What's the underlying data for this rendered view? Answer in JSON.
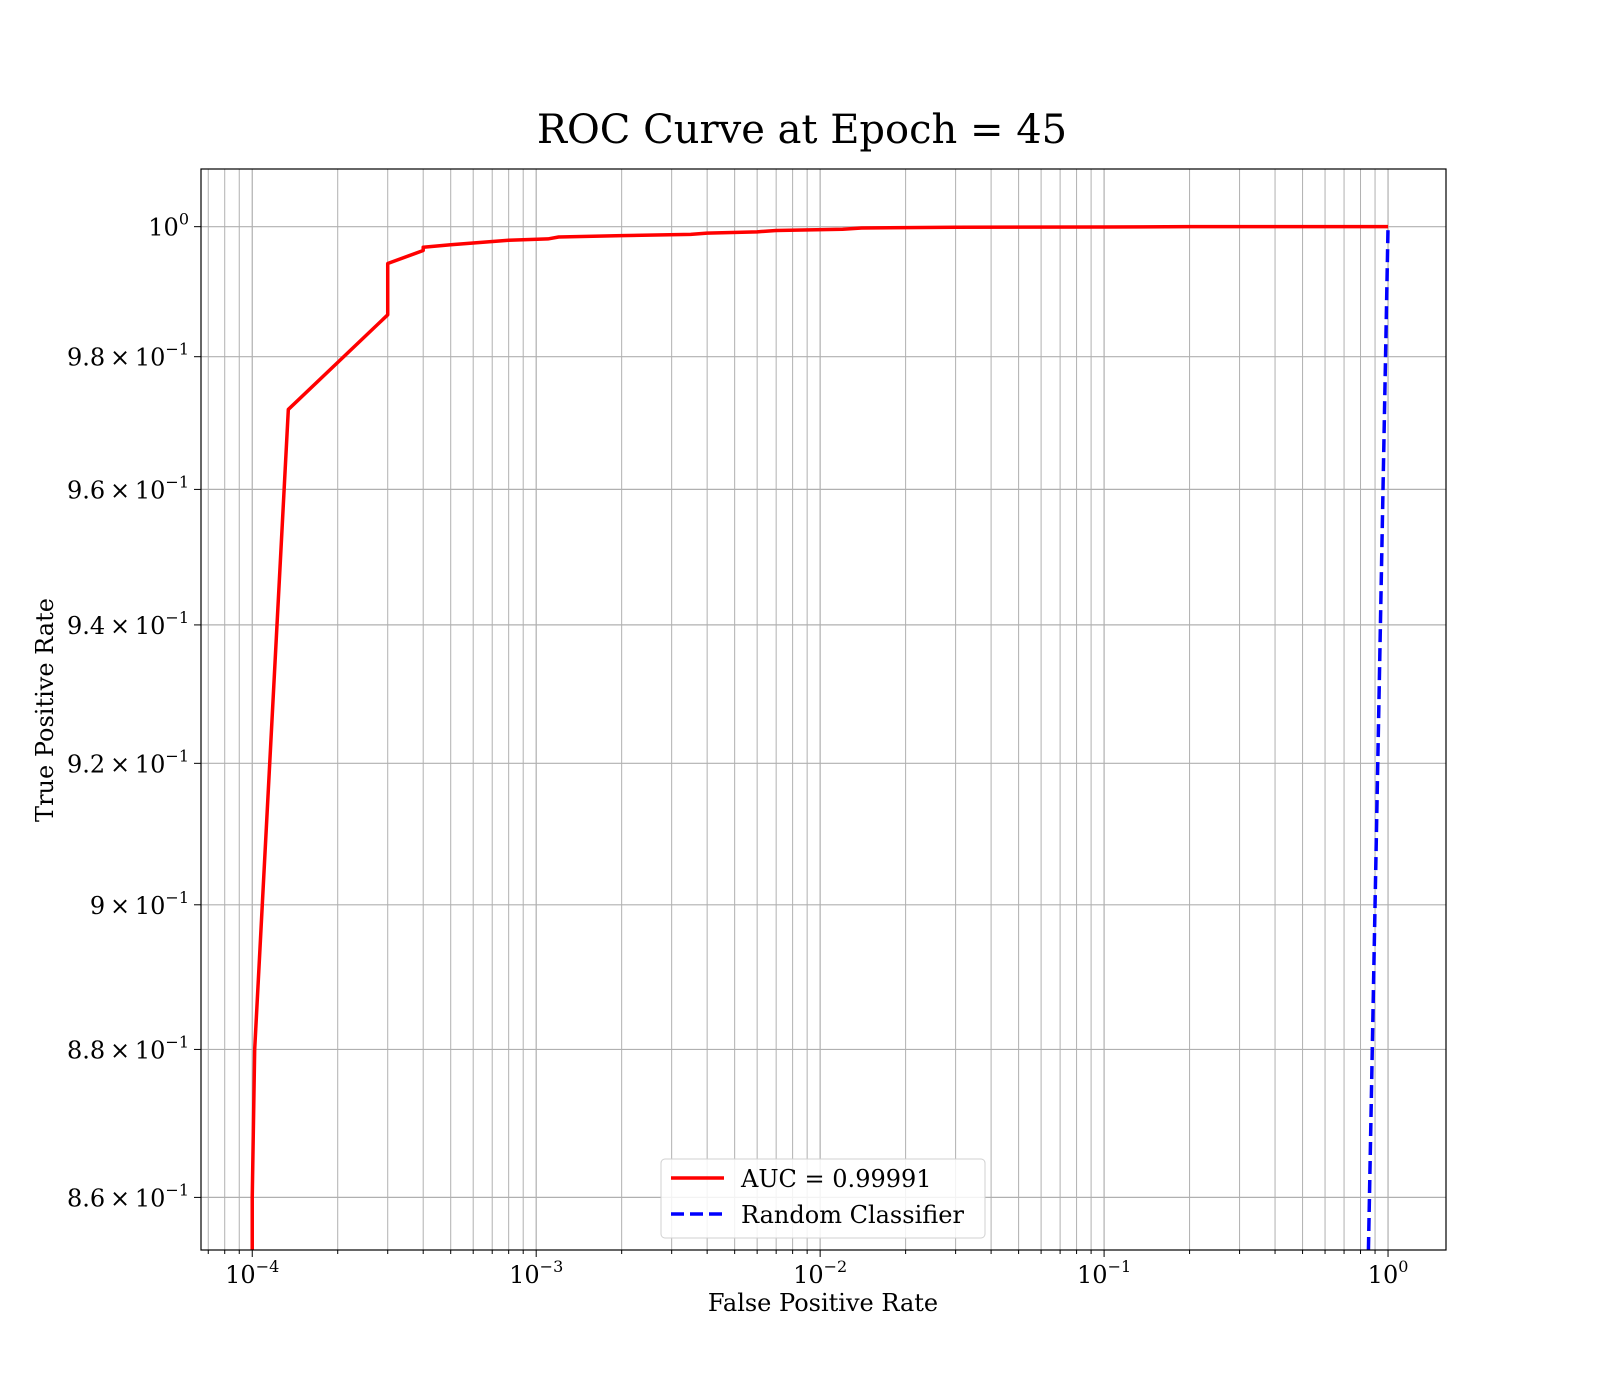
{
  "chart_data": {
    "type": "line",
    "title": "ROC Curve at Epoch = 45",
    "xlabel": "False Positive Rate",
    "ylabel": "True Positive Rate",
    "xscale": "log",
    "yscale": "log",
    "xlim": [
      6.6e-05,
      1.6
    ],
    "ylim": [
      0.853,
      1.009
    ],
    "grid": "on (major and minor)",
    "legend_placement": "lower center",
    "x_ticks": [
      {
        "value": 0.0001,
        "base": "10",
        "exp": "−4"
      },
      {
        "value": 0.001,
        "base": "10",
        "exp": "−3"
      },
      {
        "value": 0.01,
        "base": "10",
        "exp": "−2"
      },
      {
        "value": 0.1,
        "base": "10",
        "exp": "−1"
      },
      {
        "value": 1,
        "base": "10",
        "exp": "0"
      }
    ],
    "y_ticks": [
      {
        "value": 1.0,
        "mant": "",
        "base": "10",
        "exp": "0"
      },
      {
        "value": 0.98,
        "mant": "9.8 × ",
        "base": "10",
        "exp": "−1"
      },
      {
        "value": 0.96,
        "mant": "9.6 × ",
        "base": "10",
        "exp": "−1"
      },
      {
        "value": 0.94,
        "mant": "9.4 × ",
        "base": "10",
        "exp": "−1"
      },
      {
        "value": 0.92,
        "mant": "9.2 × ",
        "base": "10",
        "exp": "−1"
      },
      {
        "value": 0.9,
        "mant": "9 × ",
        "base": "10",
        "exp": "−1"
      },
      {
        "value": 0.88,
        "mant": "8.8 × ",
        "base": "10",
        "exp": "−1"
      },
      {
        "value": 0.86,
        "mant": "8.6 × ",
        "base": "10",
        "exp": "−1"
      }
    ],
    "series": [
      {
        "name": "AUC = 0.99991",
        "color": "#ff0000",
        "style": "solid",
        "x": [
          0.0001,
          0.0001,
          0.000102,
          0.000134,
          0.0003,
          0.0003,
          0.0004,
          0.0004,
          0.0005,
          0.0008,
          0.0011,
          0.0012,
          0.002,
          0.0035,
          0.004,
          0.006,
          0.007,
          0.012,
          0.014,
          0.03,
          0.1,
          0.2,
          1.0
        ],
        "y": [
          0.853,
          0.86,
          0.88,
          0.972,
          0.9864,
          0.9943,
          0.9963,
          0.9968,
          0.9972,
          0.9979,
          0.9981,
          0.9984,
          0.9986,
          0.9988,
          0.999,
          0.9992,
          0.9994,
          0.9996,
          0.9998,
          0.9999,
          0.99995,
          1.0,
          1.0
        ]
      },
      {
        "name": "Random Classifier",
        "color": "#0000ff",
        "style": "dashed",
        "x": [
          0.853,
          0.87,
          0.9,
          0.95,
          0.99,
          1.0
        ],
        "y": [
          0.853,
          0.87,
          0.9,
          0.95,
          0.99,
          1.0
        ]
      }
    ]
  }
}
